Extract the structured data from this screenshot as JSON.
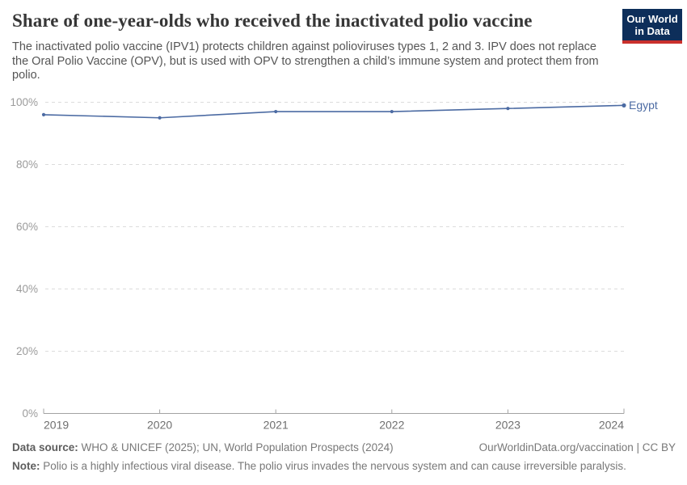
{
  "header": {
    "title": "Share of one-year-olds who received the inactivated polio vaccine",
    "subtitle": "The inactivated polio vaccine (IPV1) protects children against polioviruses types 1, 2 and 3. IPV does not replace the Oral Polio Vaccine (OPV), but is used with OPV to strengthen a child’s immune system and protect them from polio.",
    "logo": {
      "line1": "Our World",
      "line2": "in Data",
      "bg_color": "#0d2e5a",
      "accent_color": "#c9302c"
    }
  },
  "chart_data": {
    "type": "line",
    "title": "Share of one-year-olds who received the inactivated polio vaccine",
    "x": [
      2019,
      2020,
      2021,
      2022,
      2023,
      2024
    ],
    "series": [
      {
        "name": "Egypt",
        "values": [
          96,
          95,
          97,
          97,
          98,
          99
        ],
        "color": "#4c6ba3"
      }
    ],
    "xlabel": "",
    "ylabel": "",
    "ylim": [
      0,
      100
    ],
    "yticks": [
      0,
      20,
      40,
      60,
      80,
      100
    ],
    "ytick_suffix": "%",
    "grid": "horizontal-dashed",
    "legend_position": "end-of-line",
    "colors": {
      "gridline": "#dcdcdc",
      "axis_line": "#a3a3a3",
      "ytick_label": "#9b9b9b",
      "xtick_label": "#6f6f6f"
    }
  },
  "footer": {
    "datasource_label": "Data source:",
    "datasource_text": " WHO & UNICEF (2025); UN, World Population Prospects (2024)",
    "license_text": "OurWorldinData.org/vaccination | CC BY",
    "note_label": "Note:",
    "note_text": " Polio is a highly infectious viral disease. The polio virus invades the nervous system and can cause irreversible paralysis."
  }
}
